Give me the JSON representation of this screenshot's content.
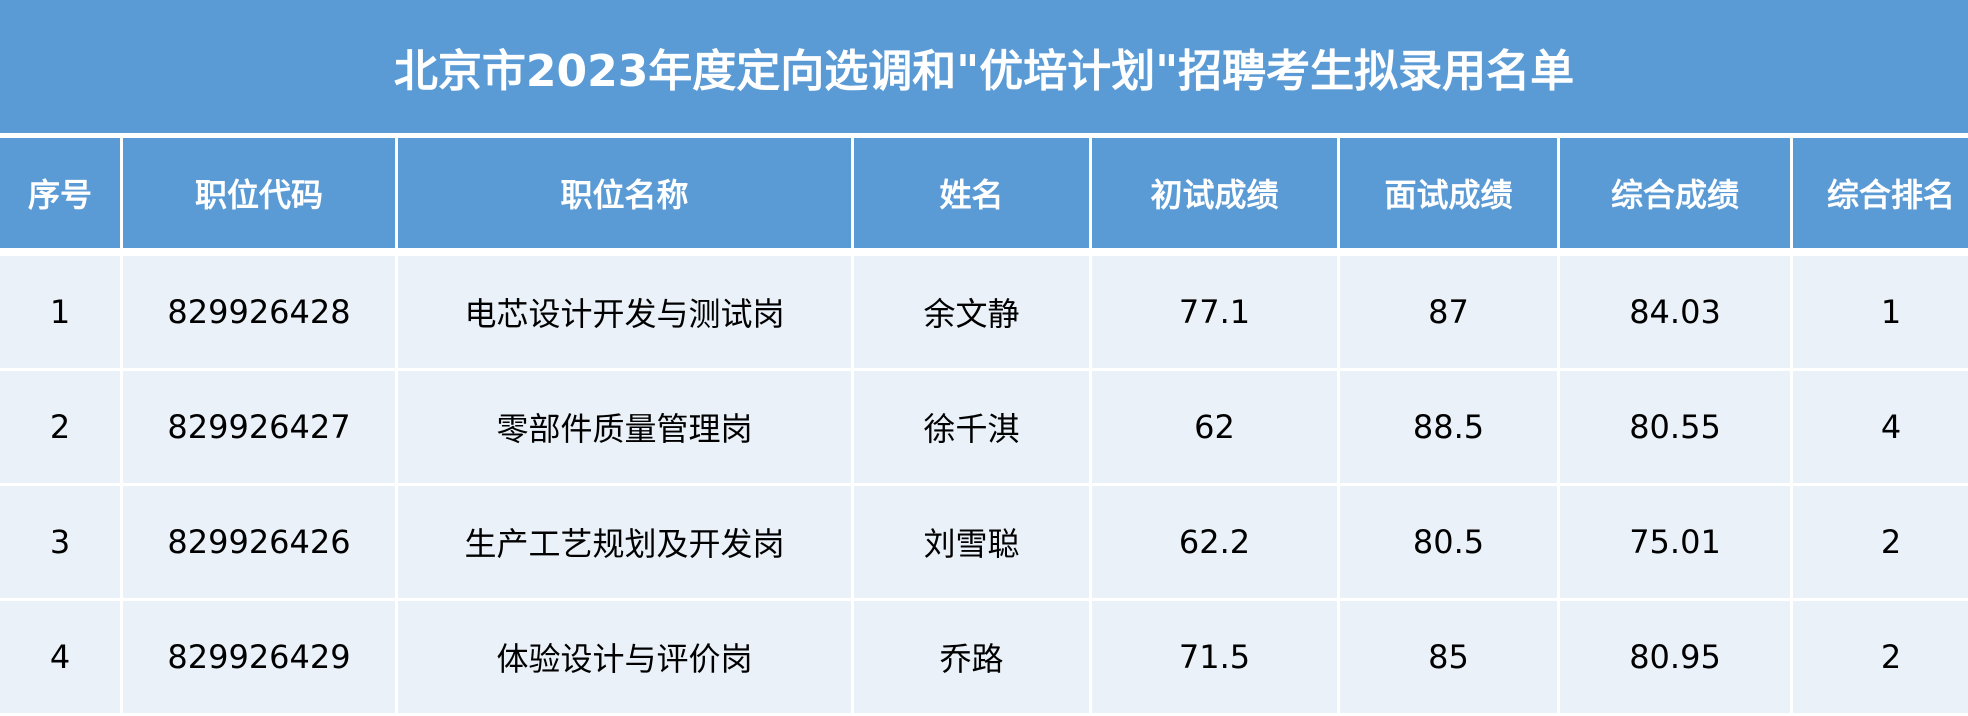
{
  "title": "北京市2023年度定向选调和\"优培计划\"招聘考生拟录用名单",
  "colors": {
    "header_bg": "#5b9bd5",
    "row_bg": "#eaf1f8"
  },
  "columns": [
    "序号",
    "职位代码",
    "职位名称",
    "姓名",
    "初试成绩",
    "面试成绩",
    "综合成绩",
    "综合排名"
  ],
  "rows": [
    [
      "1",
      "829926428",
      "电芯设计开发与测试岗",
      "余文静",
      "77.1",
      "87",
      "84.03",
      "1"
    ],
    [
      "2",
      "829926427",
      "零部件质量管理岗",
      "徐千淇",
      "62",
      "88.5",
      "80.55",
      "4"
    ],
    [
      "3",
      "829926426",
      "生产工艺规划及开发岗",
      "刘雪聪",
      "62.2",
      "80.5",
      "75.01",
      "2"
    ],
    [
      "4",
      "829926429",
      "体验设计与评价岗",
      "乔路",
      "71.5",
      "85",
      "80.95",
      "2"
    ]
  ]
}
